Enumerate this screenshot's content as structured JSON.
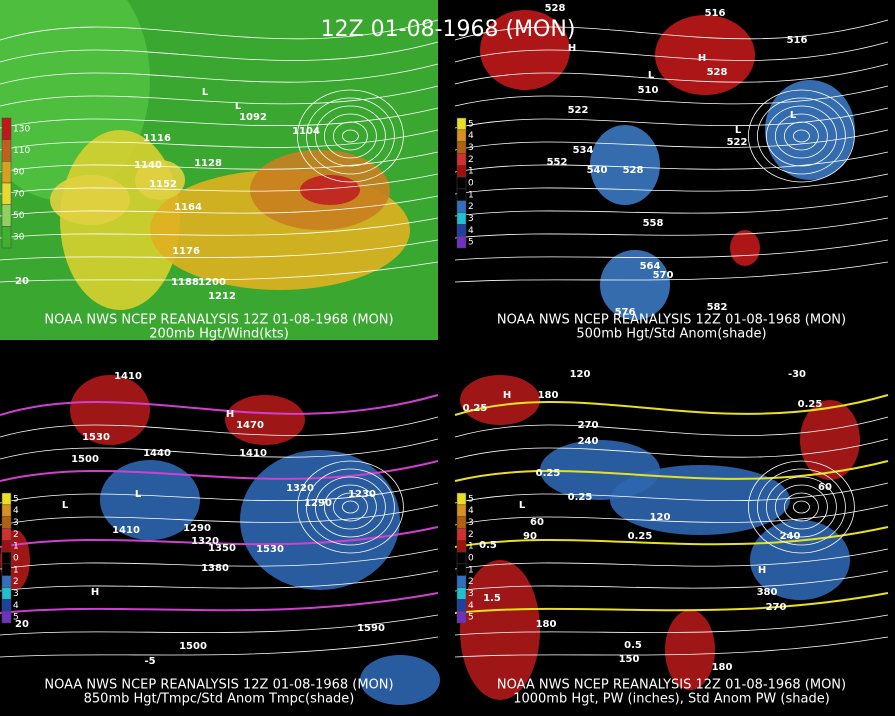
{
  "title": "12Z 01-08-1968 (MON)",
  "panels": [
    {
      "caption": [
        "NOAA NWS NCEP REANALYSIS 12Z 01-08-1968 (MON)",
        "200mb Hgt/Wind(kts)"
      ],
      "colorbar": [
        "130",
        "110",
        "90",
        "70",
        "50",
        "30"
      ],
      "labels": [
        "1116",
        "1140",
        "1152",
        "1128",
        "1164",
        "1104",
        "1092",
        "1176",
        "1188",
        "1200",
        "1212",
        "20",
        "L",
        "L"
      ]
    },
    {
      "caption": [
        "NOAA NWS NCEP REANALYSIS 12Z 01-08-1968 (MON)",
        "500mb Hgt/Std Anom(shade)"
      ],
      "colorbar": [
        "5",
        "4",
        "3",
        "2",
        "1",
        "0",
        "1",
        "2",
        "3",
        "4",
        "5"
      ],
      "labels": [
        "528",
        "516",
        "516",
        "510",
        "522",
        "534",
        "552",
        "540",
        "528",
        "558",
        "564",
        "570",
        "582",
        "576",
        "528",
        "522",
        "H",
        "H",
        "L",
        "L",
        "L"
      ]
    },
    {
      "caption": [
        "NOAA NWS NCEP REANALYSIS 12Z 01-08-1968 (MON)",
        "850mb Hgt/Tmpc/Std Anom Tmpc(shade)"
      ],
      "colorbar": [
        "5",
        "4",
        "3",
        "2",
        "1",
        "0",
        "1",
        "2",
        "3",
        "4",
        "5"
      ],
      "labels": [
        "1410",
        "1530",
        "1500",
        "1440",
        "1410",
        "1470",
        "1410",
        "1380",
        "1350",
        "1320",
        "1290",
        "1320",
        "1290",
        "1230",
        "1530",
        "1500",
        "1590",
        "20",
        "-5",
        "H",
        "H",
        "L",
        "L"
      ]
    },
    {
      "caption": [
        "NOAA NWS NCEP REANALYSIS 12Z 01-08-1968 (MON)",
        "1000mb Hgt, PW (inches), Std Anom PW (shade)"
      ],
      "colorbar": [
        "5",
        "4",
        "3",
        "2",
        "1",
        "0",
        "1",
        "2",
        "3",
        "4",
        "5"
      ],
      "labels": [
        "120",
        "180",
        "270",
        "240",
        "0.25",
        "0.25",
        "0.25",
        "0.25",
        "0.5",
        "60",
        "90",
        "0.25",
        "180",
        "1.5",
        "0.5",
        "150",
        "240",
        "380",
        "270",
        "180",
        "60",
        "-30",
        "120",
        "H",
        "H",
        "L"
      ]
    }
  ]
}
